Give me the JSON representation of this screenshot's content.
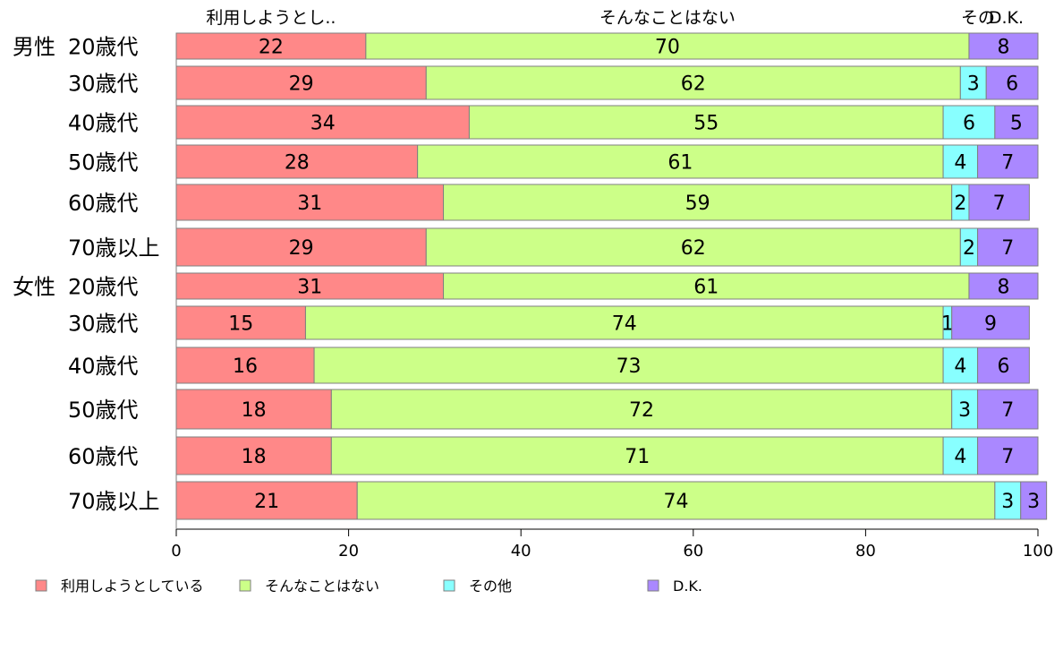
{
  "chart_data": {
    "type": "bar",
    "orientation": "horizontal",
    "stacked": true,
    "groups": [
      {
        "label": "男性",
        "category_index": 0
      },
      {
        "label": "女性",
        "category_index": 6
      }
    ],
    "categories": [
      "20歳代",
      "30歳代",
      "40歳代",
      "50歳代",
      "60歳代",
      "70歳以上",
      "20歳代",
      "30歳代",
      "40歳代",
      "50歳代",
      "60歳代",
      "70歳以上"
    ],
    "series": [
      {
        "name": "利用しようとしている",
        "short_label": "利用しようとし..",
        "color": "#ff8888",
        "values": [
          22,
          29,
          34,
          28,
          31,
          29,
          31,
          15,
          16,
          18,
          18,
          21
        ]
      },
      {
        "name": "そんなことはない",
        "short_label": "そんなことはない",
        "color": "#ccff88",
        "values": [
          70,
          62,
          55,
          61,
          59,
          62,
          61,
          74,
          73,
          72,
          71,
          74
        ]
      },
      {
        "name": "その他",
        "short_label": "その",
        "color": "#88ffff",
        "values": [
          0,
          3,
          6,
          4,
          2,
          2,
          0,
          1,
          4,
          3,
          4,
          3
        ]
      },
      {
        "name": "D.K.",
        "short_label": "D.K.",
        "color": "#aa88ff",
        "values": [
          8,
          6,
          5,
          7,
          7,
          7,
          8,
          9,
          6,
          7,
          7,
          3
        ]
      }
    ],
    "xlim": [
      0,
      100
    ],
    "xticks": [
      0,
      20,
      40,
      60,
      80,
      100
    ],
    "grid": false,
    "legend_position": "bottom"
  }
}
